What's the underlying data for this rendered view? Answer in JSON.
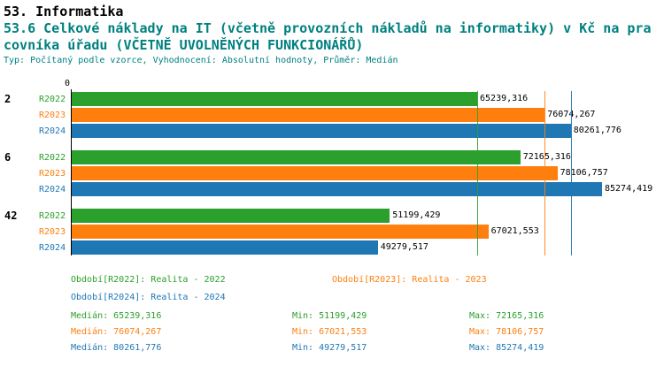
{
  "title": {
    "line1": "53. Informatika",
    "line2": "53.6 Celkové náklady na IT (včetně provozních nákladů na informatiky) v Kč na pra",
    "line3": "covníka úřadu (VČETNĚ UVOLNĚNÝCH FUNKCIONÁŘŮ)",
    "line4": "Typ: Počítaný podle vzorce, Vyhodnocení: Absolutní hodnoty, Průměr: Medián"
  },
  "colors": {
    "green": "#2ca02c",
    "orange": "#ff7f0e",
    "blue": "#1f77b4",
    "teal": "#008080"
  },
  "chart_data": {
    "type": "bar",
    "orientation": "horizontal",
    "axis_zero_label": "0",
    "xmax": 85274.419,
    "grid": false,
    "groups": [
      {
        "label": "2",
        "bars": [
          {
            "period": "R2022",
            "value": 65239.316,
            "display": "65239,316",
            "color": "green"
          },
          {
            "period": "R2023",
            "value": 76074.267,
            "display": "76074,267",
            "color": "orange"
          },
          {
            "period": "R2024",
            "value": 80261.776,
            "display": "80261,776",
            "color": "blue"
          }
        ]
      },
      {
        "label": "6",
        "bars": [
          {
            "period": "R2022",
            "value": 72165.316,
            "display": "72165,316",
            "color": "green"
          },
          {
            "period": "R2023",
            "value": 78106.757,
            "display": "78106,757",
            "color": "orange"
          },
          {
            "period": "R2024",
            "value": 85274.419,
            "display": "85274,419",
            "color": "blue"
          }
        ]
      },
      {
        "label": "42",
        "bars": [
          {
            "period": "R2022",
            "value": 51199.429,
            "display": "51199,429",
            "color": "green"
          },
          {
            "period": "R2023",
            "value": 67021.553,
            "display": "67021,553",
            "color": "orange"
          },
          {
            "period": "R2024",
            "value": 49279.517,
            "display": "49279,517",
            "color": "blue"
          }
        ]
      }
    ],
    "median_lines": [
      {
        "value": 65239.316,
        "color": "green"
      },
      {
        "value": 76074.267,
        "color": "orange"
      },
      {
        "value": 80261.776,
        "color": "blue"
      }
    ]
  },
  "legend": [
    {
      "label": "Období[R2022]: Realita - 2022",
      "color": "green"
    },
    {
      "label": "Období[R2023]: Realita - 2023",
      "color": "orange"
    },
    {
      "label": "Období[R2024]: Realita - 2024",
      "color": "blue"
    }
  ],
  "stats": [
    {
      "color": "green",
      "median": "Medián: 65239,316",
      "min": "Min: 51199,429",
      "max": "Max: 72165,316"
    },
    {
      "color": "orange",
      "median": "Medián: 76074,267",
      "min": "Min: 67021,553",
      "max": "Max: 78106,757"
    },
    {
      "color": "blue",
      "median": "Medián: 80261,776",
      "min": "Min: 49279,517",
      "max": "Max: 85274,419"
    }
  ]
}
